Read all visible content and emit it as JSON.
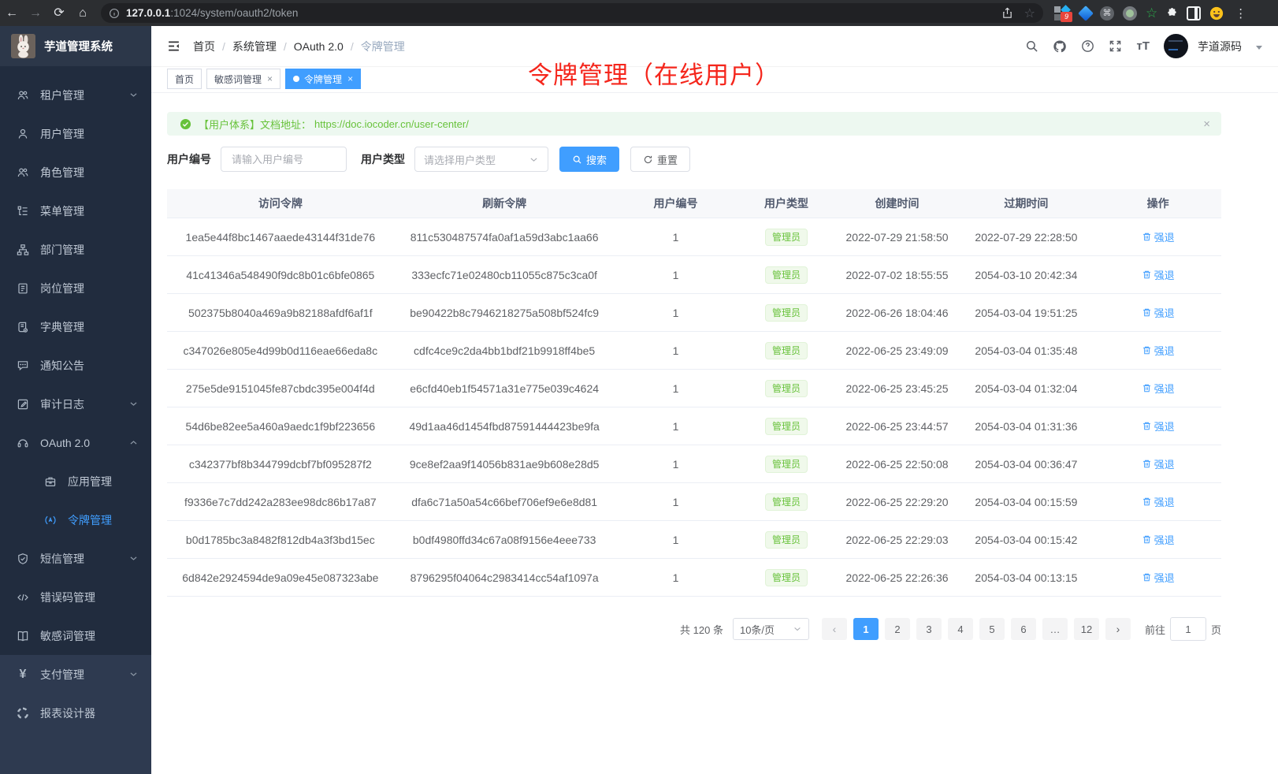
{
  "browser": {
    "url_host": "127.0.0.1",
    "url_rest": ":1024/system/oauth2/token",
    "extension_badge": "9"
  },
  "sidebar": {
    "logo_title": "芋道管理系统",
    "items": [
      {
        "key": "tenant-management",
        "label": "租户管理",
        "icon": "users-icon",
        "chevron": "down"
      },
      {
        "key": "user-management",
        "label": "用户管理",
        "icon": "user-icon"
      },
      {
        "key": "role-management",
        "label": "角色管理",
        "icon": "users-icon"
      },
      {
        "key": "menu-management",
        "label": "菜单管理",
        "icon": "menu-tree-icon"
      },
      {
        "key": "dept-management",
        "label": "部门管理",
        "icon": "org-tree-icon"
      },
      {
        "key": "post-management",
        "label": "岗位管理",
        "icon": "badge-icon"
      },
      {
        "key": "dict-management",
        "label": "字典管理",
        "icon": "dictionary-icon"
      },
      {
        "key": "notice-announcement",
        "label": "通知公告",
        "icon": "announcement-icon"
      },
      {
        "key": "audit-log",
        "label": "审计日志",
        "icon": "audit-log-icon",
        "chevron": "down"
      },
      {
        "key": "oauth2",
        "label": "OAuth 2.0",
        "icon": "headset-icon",
        "chevron": "up"
      },
      {
        "key": "application-management",
        "label": "应用管理",
        "icon": "briefcase-icon",
        "sub": true
      },
      {
        "key": "token-management",
        "label": "令牌管理",
        "icon": "token-signal-icon",
        "sub": true,
        "active": true
      },
      {
        "key": "sms-management",
        "label": "短信管理",
        "icon": "shield-check-icon",
        "chevron": "down"
      },
      {
        "key": "errorcode-management",
        "label": "错误码管理",
        "icon": "code-icon"
      },
      {
        "key": "sensitiveword-management",
        "label": "敏感词管理",
        "icon": "book-icon"
      }
    ],
    "bottom_items": [
      {
        "key": "pay-management",
        "label": "支付管理",
        "icon": "yen-icon",
        "chevron": "down"
      },
      {
        "key": "report-designer",
        "label": "报表设计器",
        "icon": "chart-design-icon"
      }
    ]
  },
  "header": {
    "breadcrumb": [
      "首页",
      "系统管理",
      "OAuth 2.0",
      "令牌管理"
    ],
    "username": "芋道源码"
  },
  "tabs": [
    {
      "label": "首页",
      "closable": false,
      "active": false
    },
    {
      "label": "敏感词管理",
      "closable": true,
      "active": false
    },
    {
      "label": "令牌管理",
      "closable": true,
      "active": true
    }
  ],
  "annotation": "令牌管理（在线用户）",
  "alert": {
    "text": "【用户体系】文档地址：",
    "link": "https://doc.iocoder.cn/user-center/"
  },
  "filters": {
    "user_id_label": "用户编号",
    "user_id_placeholder": "请输入用户编号",
    "user_type_label": "用户类型",
    "user_type_placeholder": "请选择用户类型",
    "search_label": "搜索",
    "reset_label": "重置"
  },
  "table": {
    "columns": [
      "访问令牌",
      "刷新令牌",
      "用户编号",
      "用户类型",
      "创建时间",
      "过期时间",
      "操作"
    ],
    "action_label": "强退",
    "rows": [
      {
        "access_token": "1ea5e44f8bc1467aaede43144f31de76",
        "refresh_token": "811c530487574fa0af1a59d3abc1aa66",
        "user_id": "1",
        "user_type": "管理员",
        "create_time": "2022-07-29 21:58:50",
        "expire_time": "2022-07-29 22:28:50"
      },
      {
        "access_token": "41c41346a548490f9dc8b01c6bfe0865",
        "refresh_token": "333ecfc71e02480cb11055c875c3ca0f",
        "user_id": "1",
        "user_type": "管理员",
        "create_time": "2022-07-02 18:55:55",
        "expire_time": "2054-03-10 20:42:34"
      },
      {
        "access_token": "502375b8040a469a9b82188afdf6af1f",
        "refresh_token": "be90422b8c7946218275a508bf524fc9",
        "user_id": "1",
        "user_type": "管理员",
        "create_time": "2022-06-26 18:04:46",
        "expire_time": "2054-03-04 19:51:25"
      },
      {
        "access_token": "c347026e805e4d99b0d116eae66eda8c",
        "refresh_token": "cdfc4ce9c2da4bb1bdf21b9918ff4be5",
        "user_id": "1",
        "user_type": "管理员",
        "create_time": "2022-06-25 23:49:09",
        "expire_time": "2054-03-04 01:35:48"
      },
      {
        "access_token": "275e5de9151045fe87cbdc395e004f4d",
        "refresh_token": "e6cfd40eb1f54571a31e775e039c4624",
        "user_id": "1",
        "user_type": "管理员",
        "create_time": "2022-06-25 23:45:25",
        "expire_time": "2054-03-04 01:32:04"
      },
      {
        "access_token": "54d6be82ee5a460a9aedc1f9bf223656",
        "refresh_token": "49d1aa46d1454fbd87591444423be9fa",
        "user_id": "1",
        "user_type": "管理员",
        "create_time": "2022-06-25 23:44:57",
        "expire_time": "2054-03-04 01:31:36"
      },
      {
        "access_token": "c342377bf8b344799dcbf7bf095287f2",
        "refresh_token": "9ce8ef2aa9f14056b831ae9b608e28d5",
        "user_id": "1",
        "user_type": "管理员",
        "create_time": "2022-06-25 22:50:08",
        "expire_time": "2054-03-04 00:36:47"
      },
      {
        "access_token": "f9336e7c7dd242a283ee98dc86b17a87",
        "refresh_token": "dfa6c71a50a54c66bef706ef9e6e8d81",
        "user_id": "1",
        "user_type": "管理员",
        "create_time": "2022-06-25 22:29:20",
        "expire_time": "2054-03-04 00:15:59"
      },
      {
        "access_token": "b0d1785bc3a8482f812db4a3f3bd15ec",
        "refresh_token": "b0df4980ffd34c67a08f9156e4eee733",
        "user_id": "1",
        "user_type": "管理员",
        "create_time": "2022-06-25 22:29:03",
        "expire_time": "2054-03-04 00:15:42"
      },
      {
        "access_token": "6d842e2924594de9a09e45e087323abe",
        "refresh_token": "8796295f04064c2983414cc54af1097a",
        "user_id": "1",
        "user_type": "管理员",
        "create_time": "2022-06-25 22:26:36",
        "expire_time": "2054-03-04 00:13:15"
      }
    ]
  },
  "pagination": {
    "total": "共 120 条",
    "page_size": "10条/页",
    "pages": [
      "1",
      "2",
      "3",
      "4",
      "5",
      "6",
      "…",
      "12"
    ],
    "active_page": "1",
    "goto_label": "前往",
    "goto_value": "1",
    "goto_suffix": "页"
  },
  "colors": {
    "accent": "#409eff",
    "success": "#67c23a",
    "annotation_red": "#f5261c",
    "sidebar_bg": "#212c3e"
  }
}
